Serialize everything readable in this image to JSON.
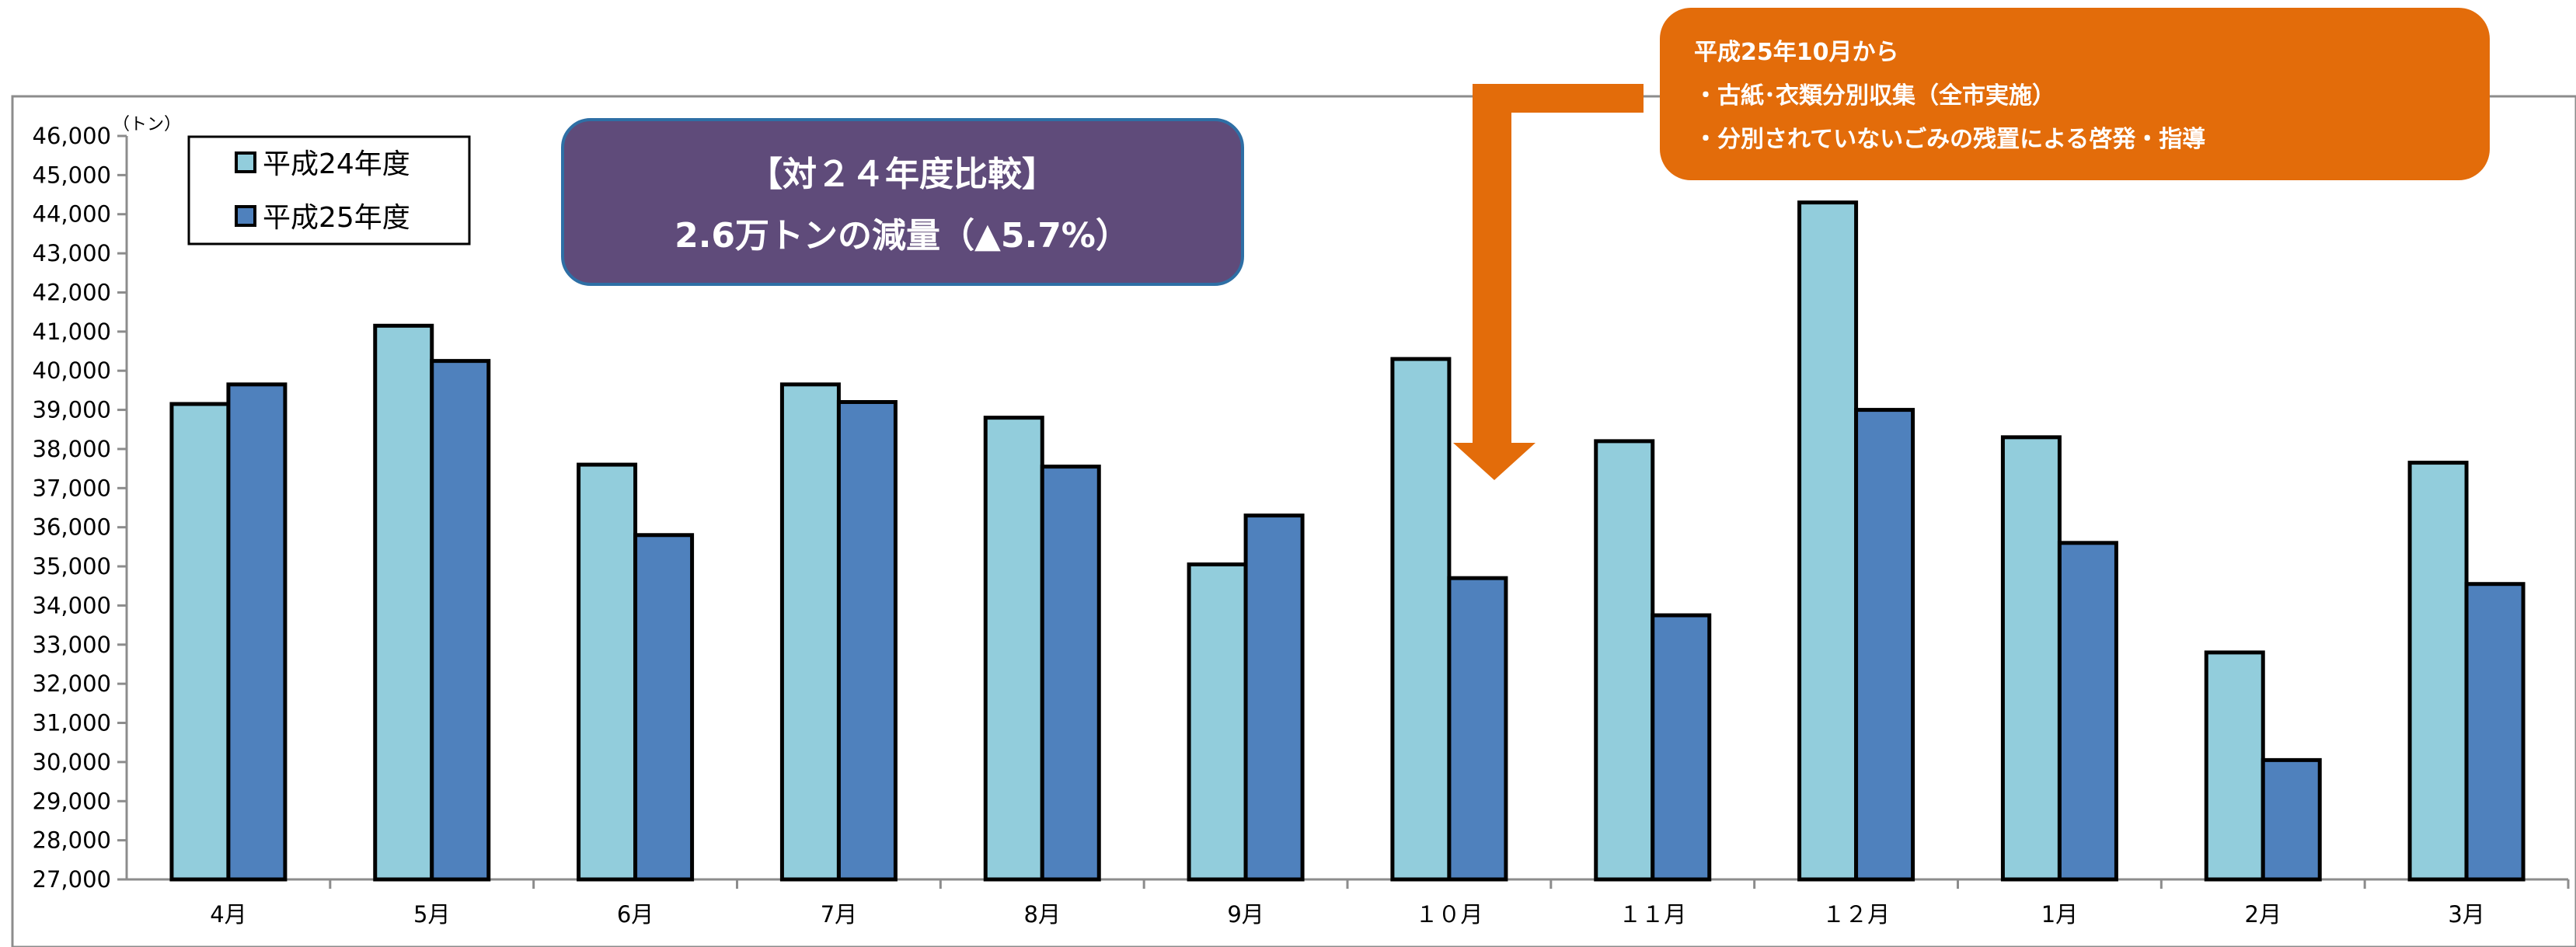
{
  "chart_data": {
    "type": "bar",
    "title": "",
    "xlabel": "",
    "ylabel": "",
    "unit_label": "（トン）",
    "categories": [
      "4月",
      "5月",
      "6月",
      "7月",
      "8月",
      "9月",
      "１０月",
      "１１月",
      "１２月",
      "1月",
      "2月",
      "3月"
    ],
    "series": [
      {
        "name": "平成24年度",
        "color": "#92CDDC",
        "values": [
          39150,
          41150,
          37600,
          39650,
          38800,
          35050,
          40300,
          38200,
          44300,
          38300,
          32800,
          37650
        ]
      },
      {
        "name": "平成25年度",
        "color": "#4F81BD",
        "values": [
          39650,
          40250,
          35800,
          39200,
          37550,
          36300,
          34700,
          33750,
          39000,
          35600,
          30050,
          34550
        ]
      }
    ],
    "ylim": [
      27000,
      46000
    ],
    "ytick_step": 1000,
    "yticks": [
      "27,000",
      "28,000",
      "29,000",
      "30,000",
      "31,000",
      "32,000",
      "33,000",
      "34,000",
      "35,000",
      "36,000",
      "37,000",
      "38,000",
      "39,000",
      "40,000",
      "41,000",
      "42,000",
      "43,000",
      "44,000",
      "45,000",
      "46,000"
    ],
    "grid": false,
    "legend_position": "top-left"
  },
  "annotations": {
    "comparison_box": {
      "line1": "【対２４年度比較】",
      "line2": "2.6万トンの減量（▲5.7%）",
      "color": "#5F4B7A"
    },
    "measures_box": {
      "line1": "平成25年10月から",
      "line2": "・古紙･衣類分別収集（全市実施）",
      "line3": "・分別されていないごみの残置による啓発・指導",
      "color": "#E36C0A"
    }
  }
}
